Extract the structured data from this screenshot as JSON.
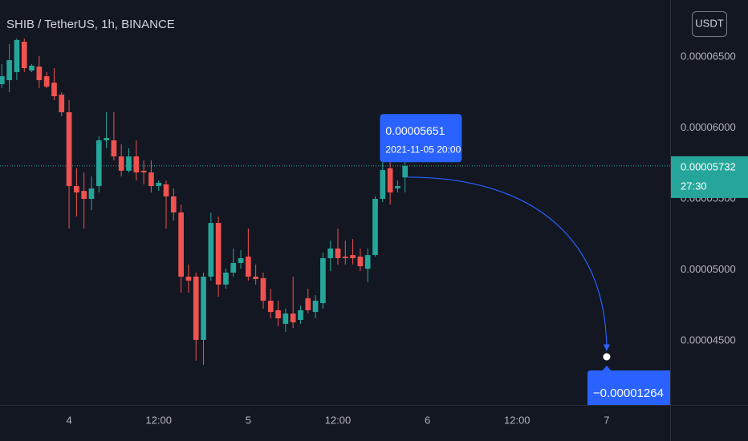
{
  "chart_data": {
    "type": "candlestick",
    "title": "SHIB / TetherUS, 1h, BINANCE",
    "currency_button": "USDT",
    "up_color": "#26a69a",
    "down_color": "#ef5350",
    "grid": false,
    "x": [
      "2021-11-03 15:00",
      "2021-11-03 16:00",
      "2021-11-03 17:00",
      "2021-11-03 18:00",
      "2021-11-03 19:00",
      "2021-11-03 20:00",
      "2021-11-03 21:00",
      "2021-11-03 22:00",
      "2021-11-03 23:00",
      "2021-11-04 00:00",
      "2021-11-04 01:00",
      "2021-11-04 02:00",
      "2021-11-04 03:00",
      "2021-11-04 04:00",
      "2021-11-04 05:00",
      "2021-11-04 06:00",
      "2021-11-04 07:00",
      "2021-11-04 08:00",
      "2021-11-04 09:00",
      "2021-11-04 10:00",
      "2021-11-04 11:00",
      "2021-11-04 12:00",
      "2021-11-04 13:00",
      "2021-11-04 14:00",
      "2021-11-04 15:00",
      "2021-11-04 16:00",
      "2021-11-04 17:00",
      "2021-11-04 18:00",
      "2021-11-04 19:00",
      "2021-11-04 20:00",
      "2021-11-04 21:00",
      "2021-11-04 22:00",
      "2021-11-04 23:00",
      "2021-11-05 00:00",
      "2021-11-05 01:00",
      "2021-11-05 02:00",
      "2021-11-05 03:00",
      "2021-11-05 04:00",
      "2021-11-05 05:00",
      "2021-11-05 06:00",
      "2021-11-05 07:00",
      "2021-11-05 08:00",
      "2021-11-05 09:00",
      "2021-11-05 10:00",
      "2021-11-05 11:00",
      "2021-11-05 12:00",
      "2021-11-05 13:00",
      "2021-11-05 14:00",
      "2021-11-05 15:00",
      "2021-11-05 16:00",
      "2021-11-05 17:00",
      "2021-11-05 18:00",
      "2021-11-05 19:00",
      "2021-11-05 20:00",
      "2021-11-05 21:00"
    ],
    "open": [
      6.308e-05,
      6.336e-05,
      6.393e-05,
      6.607e-05,
      6.404e-05,
      6.432e-05,
      6.364e-05,
      6.319e-05,
      6.234e-05,
      6.11e-05,
      5.59e-05,
      5.556e-05,
      5.5e-05,
      5.59e-05,
      5.912e-05,
      5.912e-05,
      5.799e-05,
      5.698e-05,
      5.799e-05,
      5.698e-05,
      5.686e-05,
      5.59e-05,
      5.602e-05,
      5.517e-05,
      5.404e-05,
      4.952e-05,
      4.952e-05,
      4.506e-05,
      4.952e-05,
      5.33e-05,
      4.896e-05,
      4.98e-05,
      5.048e-05,
      5.093e-05,
      4.952e-05,
      4.941e-05,
      4.782e-05,
      4.715e-05,
      4.619e-05,
      4.692e-05,
      4.647e-05,
      4.799e-05,
      4.703e-05,
      4.765e-05,
      5.082e-05,
      5.15e-05,
      5.093e-05,
      5.104e-05,
      5.093e-05,
      5.008e-05,
      5.104e-05,
      5.5e-05,
      5.715e-05,
      5.573e-05,
      5.651e-05
    ],
    "high": [
      6.449e-05,
      6.59e-05,
      6.63e-05,
      6.63e-05,
      6.449e-05,
      6.506e-05,
      6.393e-05,
      6.421e-05,
      6.251e-05,
      6.195e-05,
      5.715e-05,
      5.686e-05,
      5.658e-05,
      5.941e-05,
      6.11e-05,
      6.11e-05,
      5.884e-05,
      5.856e-05,
      5.912e-05,
      5.771e-05,
      5.771e-05,
      5.63e-05,
      5.63e-05,
      5.573e-05,
      5.46e-05,
      5.037e-05,
      4.98e-05,
      4.98e-05,
      5.404e-05,
      5.376e-05,
      5.008e-05,
      5.15e-05,
      5.138e-05,
      5.291e-05,
      5.037e-05,
      4.98e-05,
      4.867e-05,
      4.782e-05,
      4.726e-05,
      4.952e-05,
      4.748e-05,
      4.867e-05,
      4.822e-05,
      5.121e-05,
      5.206e-05,
      5.291e-05,
      5.206e-05,
      5.217e-05,
      5.15e-05,
      5.15e-05,
      5.517e-05,
      5.884e-05,
      5.771e-05,
      5.63e-05,
      5.771e-05
    ],
    "low": [
      6.28e-05,
      6.251e-05,
      6.336e-05,
      6.393e-05,
      6.393e-05,
      6.28e-05,
      6.28e-05,
      6.195e-05,
      6.082e-05,
      5.291e-05,
      5.376e-05,
      5.291e-05,
      5.421e-05,
      5.545e-05,
      5.856e-05,
      5.771e-05,
      5.658e-05,
      5.686e-05,
      5.63e-05,
      5.602e-05,
      5.545e-05,
      5.556e-05,
      5.291e-05,
      5.347e-05,
      4.839e-05,
      4.839e-05,
      4.359e-05,
      4.33e-05,
      4.924e-05,
      4.811e-05,
      4.867e-05,
      4.952e-05,
      5.008e-05,
      4.924e-05,
      4.896e-05,
      4.726e-05,
      4.658e-05,
      4.602e-05,
      4.562e-05,
      4.591e-05,
      4.619e-05,
      4.692e-05,
      4.658e-05,
      4.726e-05,
      4.991e-05,
      5.037e-05,
      5.037e-05,
      5.037e-05,
      4.991e-05,
      4.912e-05,
      5.093e-05,
      5.477e-05,
      5.46e-05,
      5.545e-05,
      5.545e-05
    ],
    "close": [
      6.364e-05,
      6.477e-05,
      6.619e-05,
      6.421e-05,
      6.438e-05,
      6.336e-05,
      6.291e-05,
      6.223e-05,
      6.11e-05,
      5.59e-05,
      5.545e-05,
      5.5e-05,
      5.573e-05,
      5.912e-05,
      5.929e-05,
      5.799e-05,
      5.698e-05,
      5.799e-05,
      5.686e-05,
      5.686e-05,
      5.59e-05,
      5.613e-05,
      5.517e-05,
      5.404e-05,
      4.952e-05,
      4.924e-05,
      4.506e-05,
      4.952e-05,
      5.33e-05,
      4.896e-05,
      4.98e-05,
      5.048e-05,
      5.082e-05,
      4.952e-05,
      4.935e-05,
      4.782e-05,
      4.703e-05,
      4.658e-05,
      4.692e-05,
      4.63e-05,
      4.715e-05,
      4.715e-05,
      4.782e-05,
      5.082e-05,
      5.15e-05,
      5.082e-05,
      5.082e-05,
      5.082e-05,
      5.025e-05,
      5.104e-05,
      5.5e-05,
      5.703e-05,
      5.545e-05,
      5.59e-05,
      5.732e-05
    ],
    "xlim": [
      "2021-11-03 14:45",
      "2021-11-07 08:30"
    ],
    "xticks": [
      {
        "value": "2021-11-04 00:00",
        "label": "4"
      },
      {
        "value": "2021-11-04 12:00",
        "label": "12:00"
      },
      {
        "value": "2021-11-05 00:00",
        "label": "5"
      },
      {
        "value": "2021-11-05 12:00",
        "label": "12:00"
      },
      {
        "value": "2021-11-06 00:00",
        "label": "6"
      },
      {
        "value": "2021-11-06 12:00",
        "label": "12:00"
      },
      {
        "value": "2021-11-07 00:00",
        "label": "7"
      }
    ],
    "ylim": [
      4.048e-05,
      6.901e-05
    ],
    "yticks": [
      {
        "value": 4.5e-05,
        "label": "0.00004500"
      },
      {
        "value": 5e-05,
        "label": "0.00005000"
      },
      {
        "value": 5.5e-05,
        "label": "0.00005500"
      },
      {
        "value": 6e-05,
        "label": "0.00006000"
      },
      {
        "value": 6.5e-05,
        "label": "0.00006500"
      }
    ],
    "last_price": {
      "value": 5.732e-05,
      "label": "0.00005732"
    },
    "countdown": "27:30",
    "tooltip": {
      "value": 5.651e-05,
      "label": "0.00005651",
      "time": "2021-11-05 20:00"
    },
    "annotation": {
      "text": "−0.00001264",
      "x": "2021-11-07 00:00",
      "y": 4.387e-05
    }
  }
}
